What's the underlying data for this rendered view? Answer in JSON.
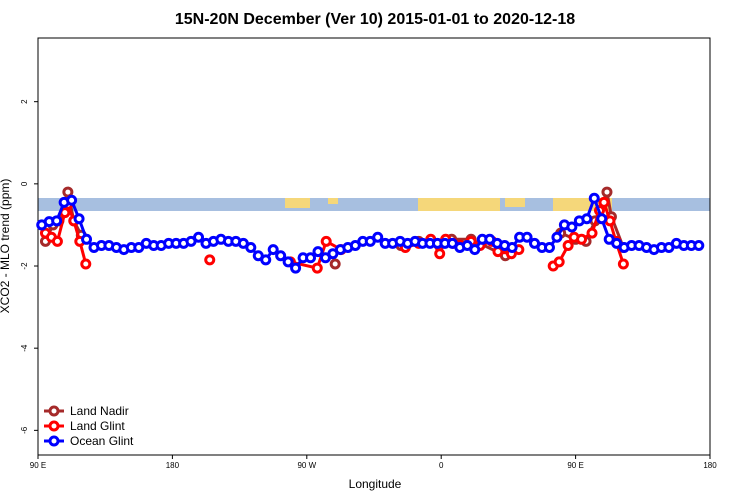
{
  "chart_data": {
    "type": "line",
    "title": "15N-20N December (Ver 10)   2015-01-01 to 2020-12-18",
    "x_label": "Longitude",
    "y_label": "XCO2 - MLO trend (ppm)",
    "xlim": [
      90,
      540
    ],
    "ylim": [
      -6.6,
      3.55
    ],
    "xticks": [
      {
        "value": 90,
        "label": "90 E"
      },
      180,
      {
        "value": 270,
        "label": "90 W"
      },
      {
        "value": 360,
        "label": "0"
      },
      {
        "value": 450,
        "label": "90 E"
      },
      {
        "value": 540,
        "label": "180"
      }
    ],
    "yticks": [
      -6,
      -4,
      -2,
      0,
      2
    ],
    "legend": "bottomleft",
    "series": [
      {
        "name": "Land Nadir",
        "color": "#a52a2a",
        "x": [
          95,
          100,
          104,
          110,
          114,
          119,
          null,
          289,
          null,
          333,
          345,
          367,
          380,
          403,
          null,
          440,
          450,
          457,
          463,
          471,
          474,
          482
        ],
        "values": [
          -1.4,
          -1.0,
          -0.9,
          -0.2,
          -0.9,
          -1.25,
          null,
          -1.95,
          null,
          -1.5,
          -1.4,
          -1.35,
          -1.35,
          -1.75,
          null,
          -1.2,
          -1.35,
          -1.4,
          -0.9,
          -0.2,
          -0.8,
          -1.55
        ]
      },
      {
        "name": "Land Glint",
        "color": "#ff0000",
        "x": [
          95,
          99,
          103,
          108,
          110,
          114,
          118,
          122,
          null,
          205,
          null,
          259,
          277,
          283,
          293,
          null,
          336,
          345,
          353,
          359,
          363,
          368,
          373,
          380,
          386,
          394,
          398,
          407,
          412,
          null,
          435,
          439,
          445,
          449,
          454,
          461,
          466,
          469,
          473,
          477,
          482
        ],
        "values": [
          -1.2,
          -1.3,
          -1.4,
          -0.7,
          -0.5,
          -0.9,
          -1.4,
          -1.95,
          null,
          -1.85,
          null,
          -1.9,
          -2.05,
          -1.4,
          -1.6,
          null,
          -1.55,
          -1.45,
          -1.35,
          -1.7,
          -1.35,
          -1.45,
          -1.5,
          -1.4,
          -1.5,
          -1.4,
          -1.65,
          -1.7,
          -1.6,
          null,
          -2.0,
          -1.9,
          -1.5,
          -1.3,
          -1.35,
          -1.2,
          -0.65,
          -0.45,
          -0.9,
          -1.4,
          -1.95
        ]
      },
      {
        "name": "Ocean Glint",
        "color": "#0000ff",
        "x": [
          92.5,
          97.5,
          102.5,
          107.5,
          112.5,
          117.5,
          122.5,
          127.5,
          132.5,
          137.5,
          142.5,
          147.5,
          152.5,
          157.5,
          162.5,
          167.5,
          172.5,
          177.5,
          182.5,
          187.5,
          192.5,
          197.5,
          202.5,
          207.5,
          212.5,
          217.5,
          222.5,
          227.5,
          232.5,
          237.5,
          242.5,
          247.5,
          252.5,
          257.5,
          262.5,
          267.5,
          272.5,
          277.5,
          282.5,
          287.5,
          292.5,
          297.5,
          302.5,
          307.5,
          312.5,
          317.5,
          322.5,
          327.5,
          332.5,
          337.5,
          342.5,
          347.5,
          352.5,
          357.5,
          362.5,
          367.5,
          372.5,
          377.5,
          382.5,
          387.5,
          392.5,
          397.5,
          402.5,
          407.5,
          412.5,
          417.5,
          422.5,
          427.5,
          432.5,
          437.5,
          442.5,
          447.5,
          452.5,
          457.5,
          462.5,
          467.5,
          472.5,
          477.5,
          482.5,
          487.5,
          492.5,
          497.5,
          502.5,
          507.5,
          512.5,
          517.5,
          522.5,
          527.5,
          532.5
        ],
        "values": [
          -1.0,
          -0.92,
          -0.9,
          -0.45,
          -0.4,
          -0.85,
          -1.35,
          -1.55,
          -1.5,
          -1.5,
          -1.55,
          -1.6,
          -1.55,
          -1.55,
          -1.45,
          -1.5,
          -1.5,
          -1.45,
          -1.45,
          -1.45,
          -1.4,
          -1.3,
          -1.45,
          -1.4,
          -1.35,
          -1.4,
          -1.4,
          -1.45,
          -1.55,
          -1.75,
          -1.85,
          -1.6,
          -1.75,
          -1.9,
          -2.05,
          -1.8,
          -1.8,
          -1.65,
          -1.8,
          -1.7,
          -1.6,
          -1.55,
          -1.5,
          -1.4,
          -1.4,
          -1.3,
          -1.45,
          -1.45,
          -1.4,
          -1.45,
          -1.4,
          -1.45,
          -1.45,
          -1.45,
          -1.45,
          -1.45,
          -1.55,
          -1.5,
          -1.6,
          -1.35,
          -1.35,
          -1.45,
          -1.5,
          -1.55,
          -1.3,
          -1.3,
          -1.45,
          -1.55,
          -1.55,
          -1.3,
          -1.0,
          -1.05,
          -0.9,
          -0.85,
          -0.35,
          -0.85,
          -1.35,
          -1.45,
          -1.55,
          -1.5,
          -1.5,
          -1.55,
          -1.6,
          -1.55,
          -1.55,
          -1.45,
          -1.5,
          -1.5,
          -1.5
        ]
      }
    ]
  }
}
